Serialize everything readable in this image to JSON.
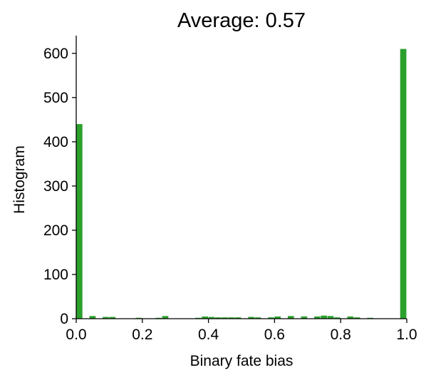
{
  "chart_data": {
    "type": "bar",
    "title": "Average: 0.57",
    "xlabel": "Binary fate bias",
    "ylabel": "Histogram",
    "xlim": [
      0.0,
      1.0
    ],
    "ylim": [
      0,
      640
    ],
    "xticks": [
      "0.0",
      "0.2",
      "0.4",
      "0.6",
      "0.8",
      "1.0"
    ],
    "yticks": [
      "0",
      "100",
      "200",
      "300",
      "400",
      "500",
      "600"
    ],
    "bin_width": 0.02,
    "bins": [
      {
        "x": 0.0,
        "value": 440
      },
      {
        "x": 0.04,
        "value": 6
      },
      {
        "x": 0.08,
        "value": 4
      },
      {
        "x": 0.1,
        "value": 4
      },
      {
        "x": 0.18,
        "value": 2
      },
      {
        "x": 0.24,
        "value": 2
      },
      {
        "x": 0.26,
        "value": 6
      },
      {
        "x": 0.36,
        "value": 2
      },
      {
        "x": 0.38,
        "value": 5
      },
      {
        "x": 0.4,
        "value": 4
      },
      {
        "x": 0.42,
        "value": 3
      },
      {
        "x": 0.44,
        "value": 3
      },
      {
        "x": 0.46,
        "value": 3
      },
      {
        "x": 0.48,
        "value": 3
      },
      {
        "x": 0.52,
        "value": 4
      },
      {
        "x": 0.54,
        "value": 3
      },
      {
        "x": 0.58,
        "value": 3
      },
      {
        "x": 0.6,
        "value": 5
      },
      {
        "x": 0.64,
        "value": 6
      },
      {
        "x": 0.68,
        "value": 5
      },
      {
        "x": 0.72,
        "value": 5
      },
      {
        "x": 0.74,
        "value": 7
      },
      {
        "x": 0.76,
        "value": 6
      },
      {
        "x": 0.78,
        "value": 3
      },
      {
        "x": 0.82,
        "value": 5
      },
      {
        "x": 0.84,
        "value": 3
      },
      {
        "x": 0.88,
        "value": 2
      },
      {
        "x": 0.98,
        "value": 610
      }
    ],
    "grid": false,
    "color": "#2ca02c"
  }
}
